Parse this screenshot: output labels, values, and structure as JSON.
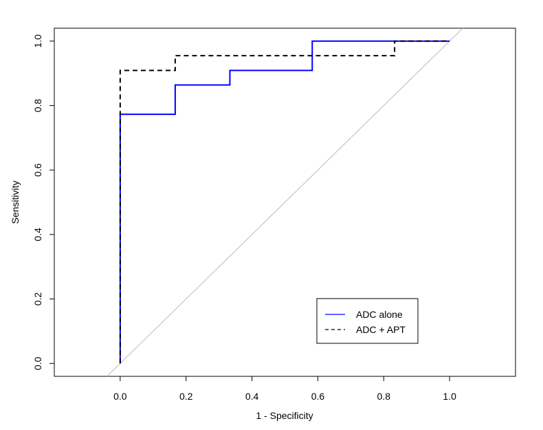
{
  "chart_data": {
    "type": "line",
    "title": "",
    "xlabel": "1 - Specificity",
    "ylabel": "Sensitivity",
    "xlim": [
      -0.2,
      1.2
    ],
    "ylim": [
      -0.04,
      1.04
    ],
    "x_ticks": [
      0.0,
      0.2,
      0.4,
      0.6,
      0.8,
      1.0
    ],
    "x_tick_labels": [
      "0.0",
      "0.2",
      "0.4",
      "0.6",
      "0.8",
      "1.0"
    ],
    "y_ticks": [
      0.0,
      0.2,
      0.4,
      0.6,
      0.8,
      1.0
    ],
    "y_tick_labels": [
      "0.0",
      "0.2",
      "0.4",
      "0.6",
      "0.8",
      "1.0"
    ],
    "grid": false,
    "legend_position": "bottom-right",
    "reference_line": {
      "x": [
        0,
        1
      ],
      "y": [
        0,
        1
      ],
      "color": "#bbbbbb"
    },
    "series": [
      {
        "name": "ADC alone",
        "color": "#0000ff",
        "style": "solid",
        "step": true,
        "x": [
          0,
          0,
          0.167,
          0.167,
          0.333,
          0.333,
          0.583,
          0.583,
          1.0
        ],
        "y": [
          0,
          0.773,
          0.773,
          0.864,
          0.864,
          0.909,
          0.909,
          1.0,
          1.0
        ]
      },
      {
        "name": "ADC + APT",
        "color": "#000000",
        "style": "dashed",
        "step": true,
        "x": [
          0,
          0,
          0.167,
          0.167,
          0.833,
          0.833,
          1.0
        ],
        "y": [
          0,
          0.909,
          0.909,
          0.955,
          0.955,
          1.0,
          1.0
        ]
      }
    ]
  }
}
